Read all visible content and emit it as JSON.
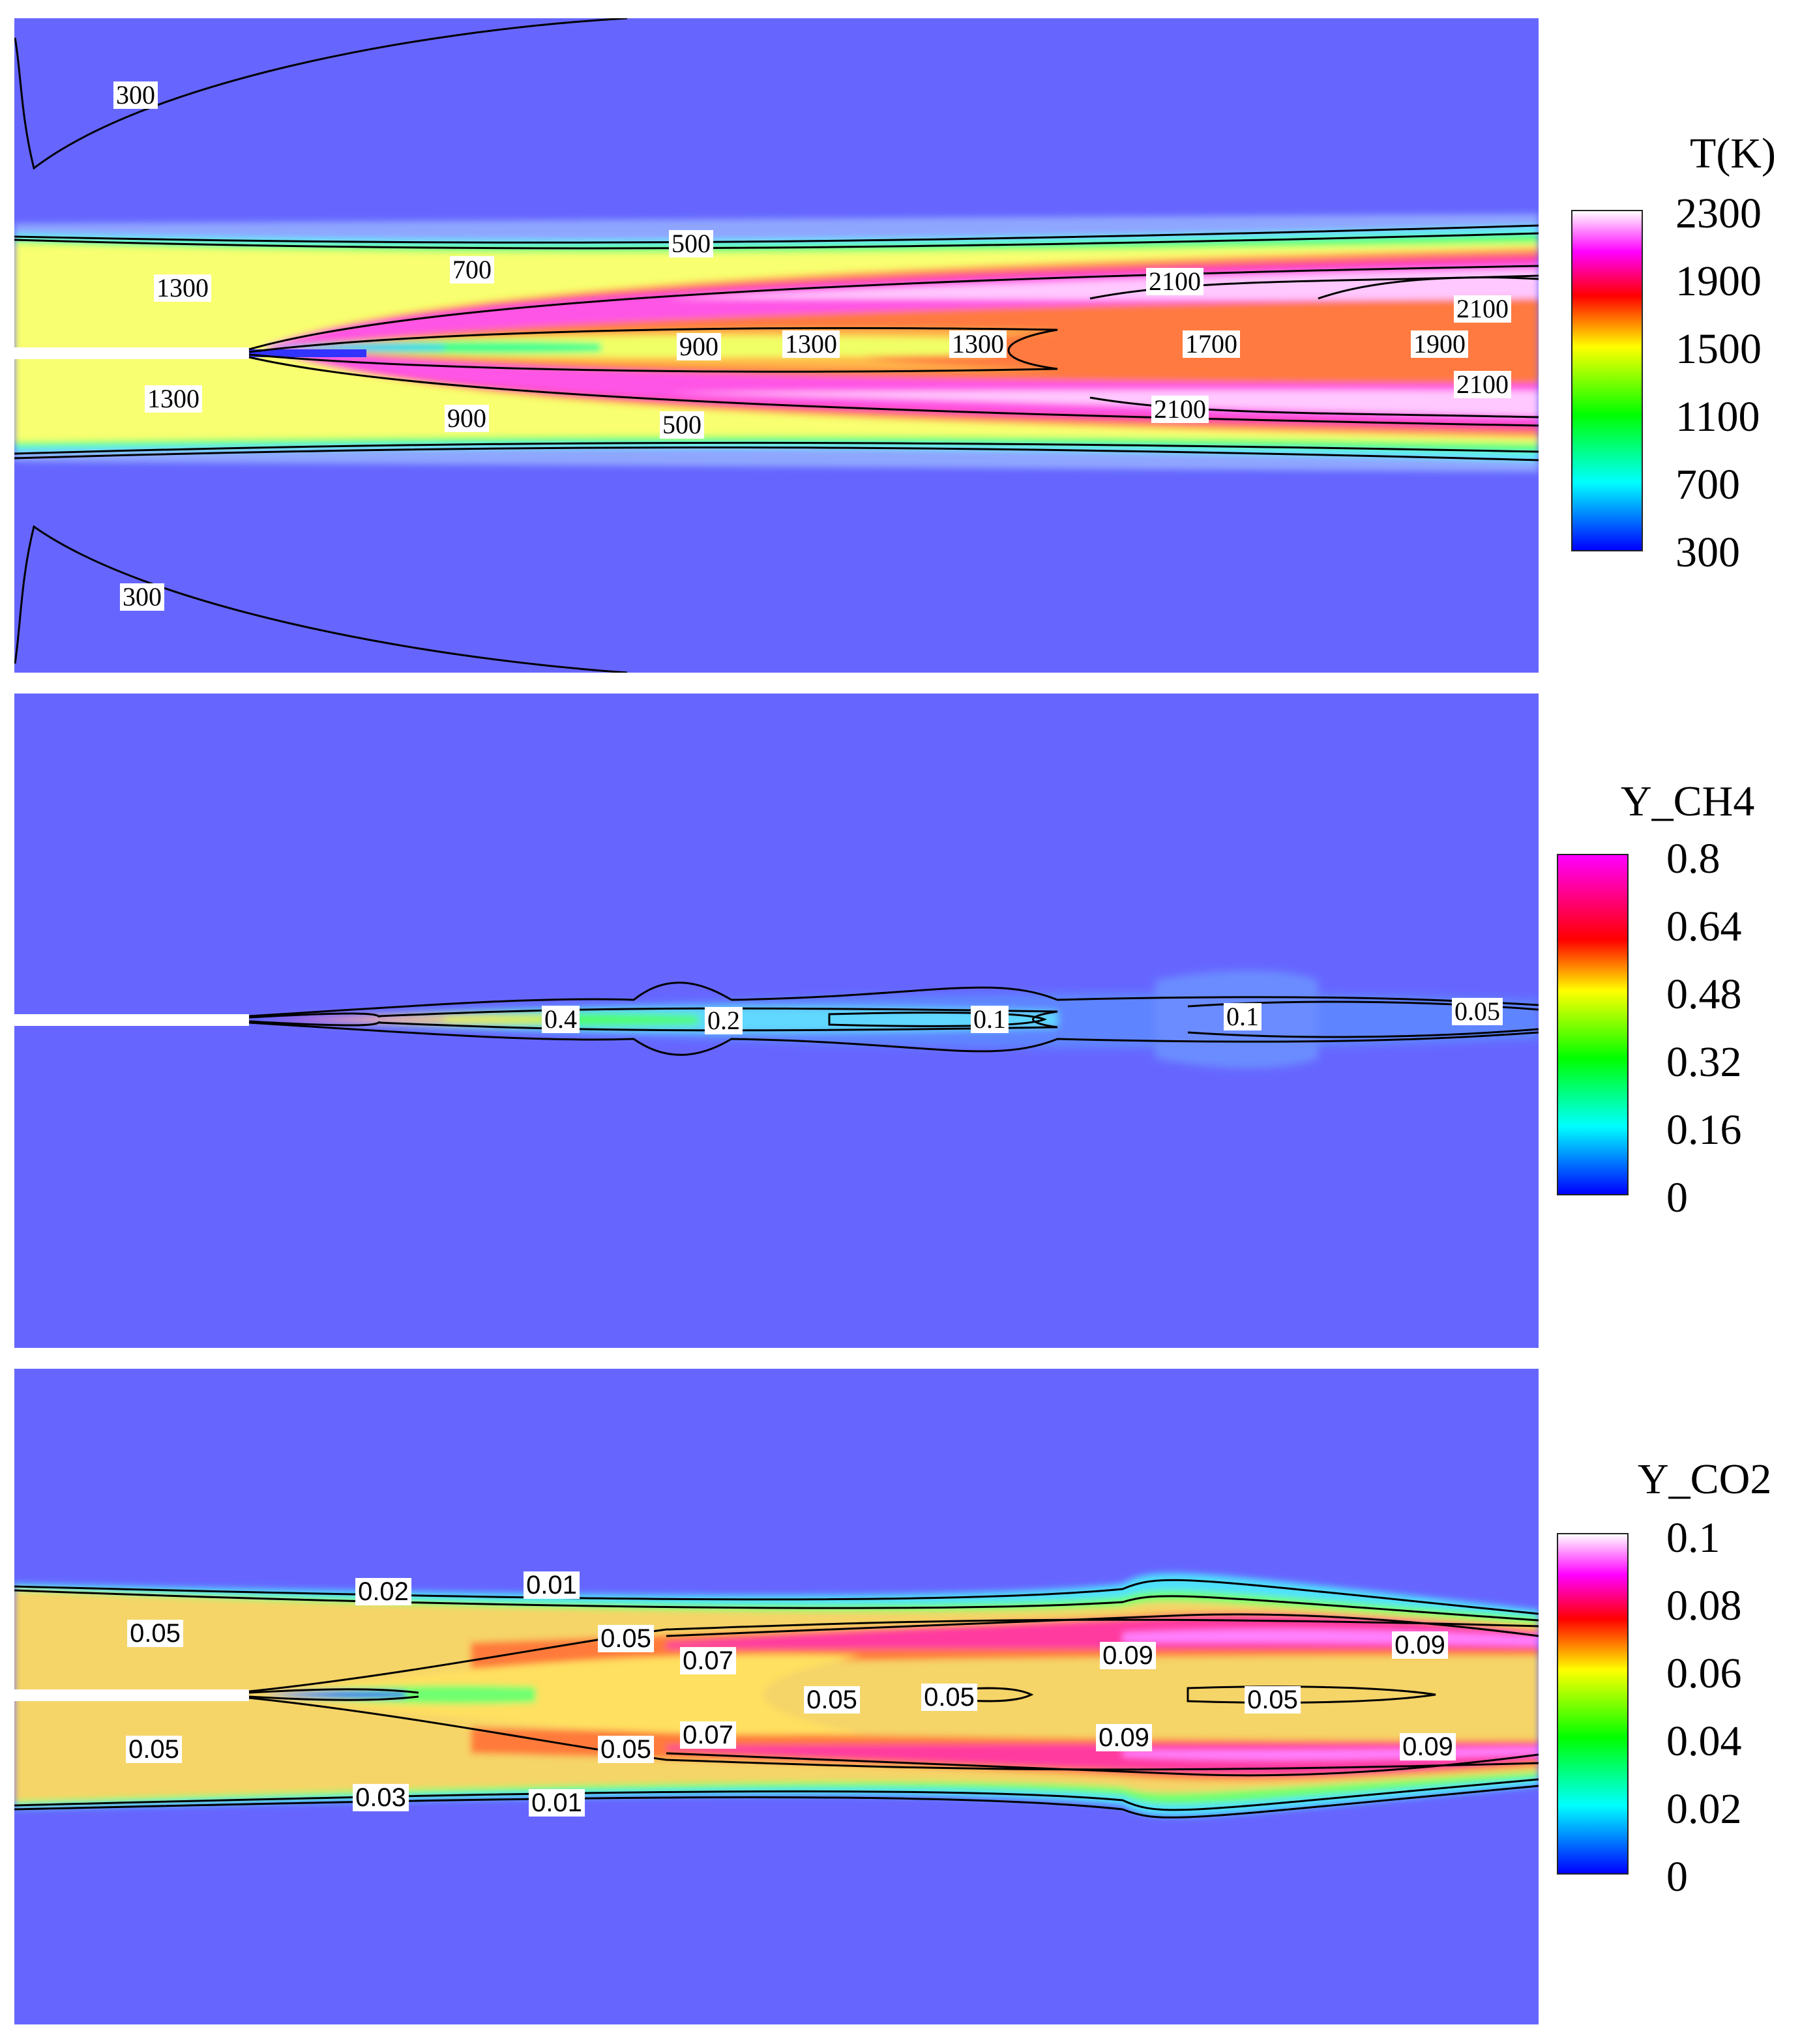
{
  "chart_data": [
    {
      "type": "heatmap",
      "field": "T(K)",
      "colorbar": {
        "title": "T(K)",
        "ticks": [
          "2300",
          "1900",
          "1500",
          "1100",
          "700",
          "300"
        ],
        "range": [
          300,
          2300
        ],
        "placement": "right"
      },
      "contour_labels": [
        "300",
        "1300",
        "700",
        "500",
        "2100",
        "2100",
        "900",
        "1300",
        "1300",
        "1700",
        "1900",
        "1300",
        "900",
        "500",
        "2100",
        "2100",
        "300"
      ]
    },
    {
      "type": "heatmap",
      "field": "Y_CH4",
      "colorbar": {
        "title": "Y_CH4",
        "ticks": [
          "0.8",
          "0.64",
          "0.48",
          "0.32",
          "0.16",
          "0"
        ],
        "range": [
          0,
          0.8
        ],
        "placement": "right"
      },
      "contour_labels": [
        "0.4",
        "0.2",
        "0.1",
        "0.1",
        "0.05"
      ]
    },
    {
      "type": "heatmap",
      "field": "Y_CO2",
      "colorbar": {
        "title": "Y_CO2",
        "ticks": [
          "0.1",
          "0.08",
          "0.06",
          "0.04",
          "0.02",
          "0"
        ],
        "range": [
          0,
          0.1
        ],
        "placement": "right"
      },
      "contour_labels": [
        "0.02",
        "0.01",
        "0.05",
        "0.05",
        "0.07",
        "0.09",
        "0.09",
        "0.05",
        "0.05",
        "0.05",
        "0.07",
        "0.05",
        "0.09",
        "0.09",
        "0.05",
        "0.03",
        "0.01"
      ]
    }
  ],
  "colors": {
    "ambient": "#6666ff",
    "nozzle": "#ffffff"
  }
}
